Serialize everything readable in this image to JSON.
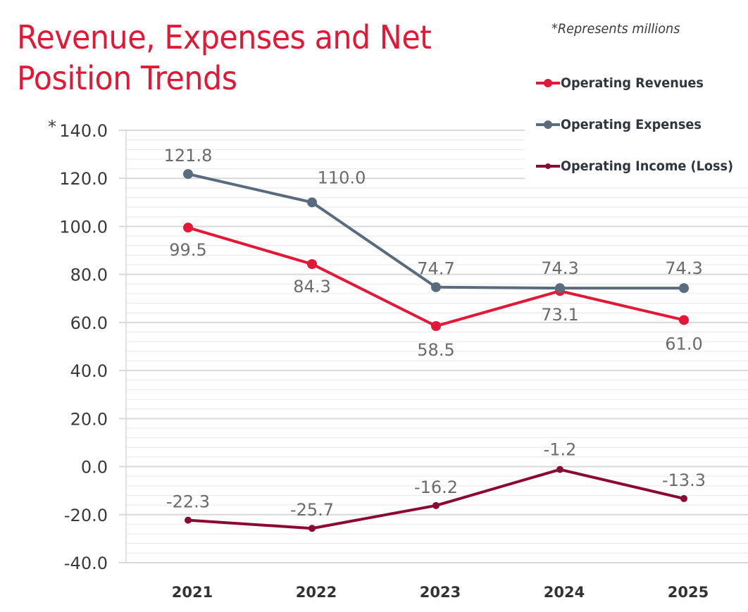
{
  "header": {
    "title_line1": "Revenue, Expenses and Net",
    "title_line2": "Position Trends",
    "note": "*Represents millions",
    "axis_asterisk": "*"
  },
  "colors": {
    "title": "#e31837",
    "revenues": "#e31837",
    "expenses": "#5a6b7d",
    "income": "#8b0a32",
    "grid_major": "#d9d9d9",
    "grid_minor": "#ececec",
    "data_label": "#6b6b6b"
  },
  "legend": [
    {
      "label": "Operating Revenues",
      "series": "revenues"
    },
    {
      "label": "Operating Expenses",
      "series": "expenses"
    },
    {
      "label": "Operating Income (Loss)",
      "series": "income"
    }
  ],
  "chart_data": {
    "type": "line",
    "title": "Revenue, Expenses and Net Position Trends",
    "subtitle": "*Represents millions",
    "xlabel": "",
    "ylabel": "*",
    "categories": [
      "2021",
      "2022",
      "2023",
      "2024",
      "2025"
    ],
    "ylim": [
      -40,
      140
    ],
    "y_major_step": 20,
    "y_minor_step": 4,
    "y_ticks": [
      "140.0",
      "120.0",
      "100.0",
      "80.0",
      "60.0",
      "40.0",
      "20.0",
      "0.0",
      "-20.0",
      "-40.0"
    ],
    "grid": true,
    "legend_position": "top-right",
    "series": [
      {
        "key": "revenues",
        "name": "Operating Revenues",
        "values": [
          99.5,
          84.3,
          58.5,
          73.1,
          61.0
        ],
        "labels": [
          "99.5",
          "84.3",
          "58.5",
          "73.1",
          "61.0"
        ],
        "label_side": [
          "below",
          "below",
          "below",
          "below",
          "below"
        ]
      },
      {
        "key": "expenses",
        "name": "Operating Expenses",
        "values": [
          121.8,
          110.0,
          74.7,
          74.3,
          74.3
        ],
        "labels": [
          "121.8",
          "110.0",
          "74.7",
          "74.3",
          "74.3"
        ],
        "label_side": [
          "above",
          "above-right",
          "above",
          "above",
          "above"
        ]
      },
      {
        "key": "income",
        "name": "Operating Income (Loss)",
        "values": [
          -22.3,
          -25.7,
          -16.2,
          -1.2,
          -13.3
        ],
        "labels": [
          "-22.3",
          "-25.7",
          "-16.2",
          "-1.2",
          "-13.3"
        ],
        "label_side": [
          "above",
          "above",
          "above",
          "above",
          "above"
        ]
      }
    ]
  }
}
